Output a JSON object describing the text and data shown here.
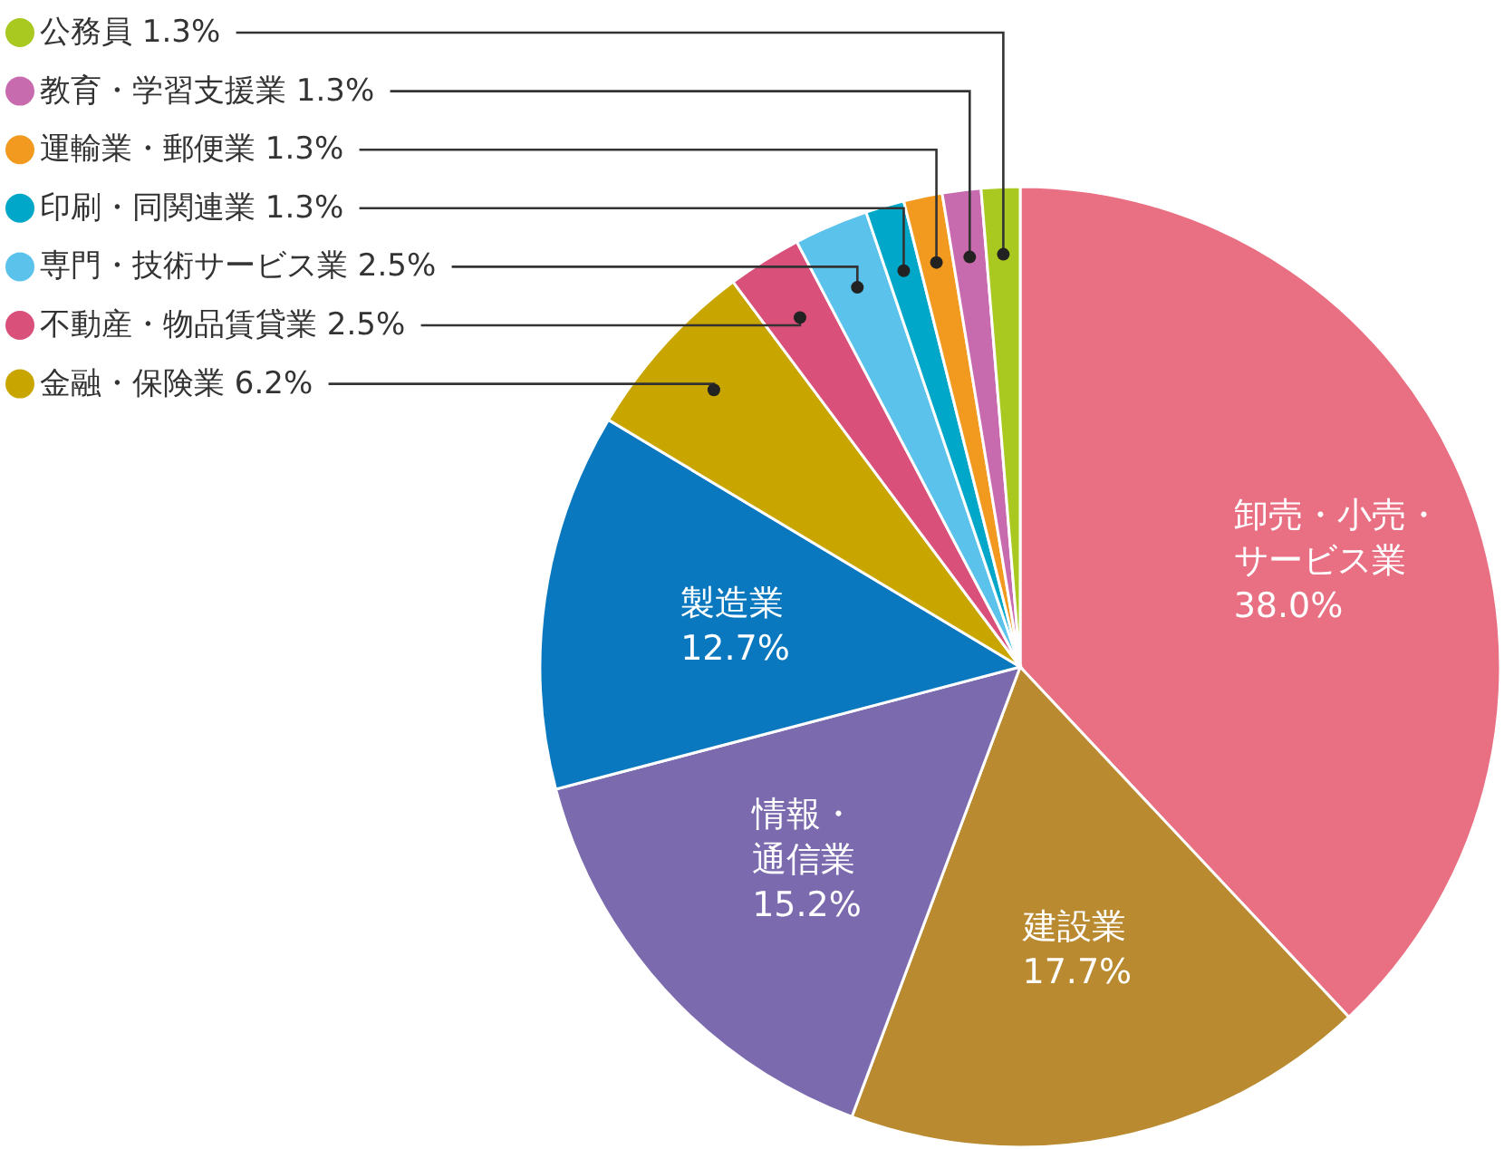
{
  "chart_data": {
    "type": "pie",
    "legend": "top left",
    "categories": [
      "卸売・小売・サービス業",
      "建設業",
      "情報・通信業",
      "製造業",
      "金融・保険業",
      "不動産・物品賃貸業",
      "専門・技術サービス業",
      "印刷・同関連業",
      "運輸業・郵便業",
      "教育・学習支援業",
      "公務員"
    ],
    "values": [
      38.0,
      17.7,
      15.2,
      12.7,
      6.2,
      2.5,
      2.5,
      1.3,
      1.3,
      1.3,
      1.3
    ],
    "value_labels": [
      "38.0%",
      "17.7%",
      "15.2%",
      "12.7%",
      "6.2%",
      "2.5%",
      "2.5%",
      "1.3%",
      "1.3%",
      "1.3%",
      "1.3%"
    ],
    "colors": [
      "#e96f82",
      "#b98a30",
      "#7b6aad",
      "#0a78bf",
      "#c9a500",
      "#d9507a",
      "#5bc2ec",
      "#00a7c8",
      "#f29a1f",
      "#c86aae",
      "#a9c820"
    ]
  }
}
